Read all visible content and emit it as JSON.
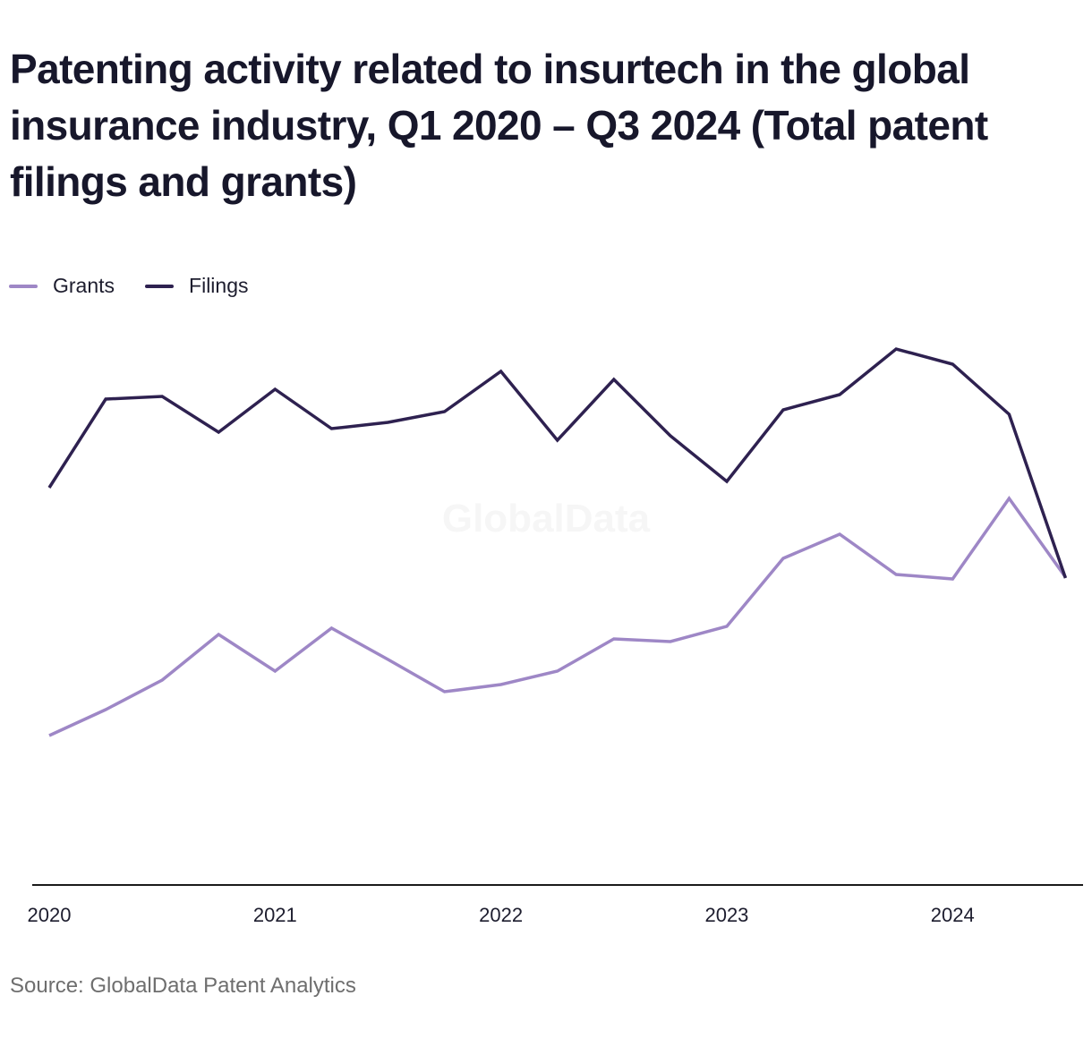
{
  "title": "Patenting activity related to insurtech in the global insurance industry, Q1 2020 – Q3 2024 (Total patent filings and grants)",
  "source": "Source: GlobalData Patent Analytics",
  "watermark": "GlobalData",
  "colors": {
    "grants": "#9e87c6",
    "filings": "#2e2150",
    "axis": "#1a1a1a"
  },
  "legend": [
    {
      "key": "grants",
      "label": "Grants"
    },
    {
      "key": "filings",
      "label": "Filings"
    }
  ],
  "chart_data": {
    "type": "line",
    "title": "Patenting activity related to insurtech in the global insurance industry, Q1 2020 – Q3 2024 (Total patent filings and grants)",
    "xlabel": "",
    "ylabel": "",
    "x": [
      "Q1 2020",
      "Q2 2020",
      "Q3 2020",
      "Q4 2020",
      "Q1 2021",
      "Q2 2021",
      "Q3 2021",
      "Q4 2021",
      "Q1 2022",
      "Q2 2022",
      "Q3 2022",
      "Q4 2022",
      "Q1 2023",
      "Q2 2023",
      "Q3 2023",
      "Q4 2023",
      "Q1 2024",
      "Q2 2024",
      "Q3 2024"
    ],
    "x_tick_labels": [
      "2020",
      "2021",
      "2022",
      "2023",
      "2024"
    ],
    "x_tick_positions": [
      0,
      4,
      8,
      12,
      16
    ],
    "ylim": [
      0,
      600
    ],
    "y_axis_labels_shown": false,
    "grid": false,
    "legend_position": "top-left",
    "series": [
      {
        "name": "Grants",
        "key": "grants",
        "values": [
          167,
          196,
          229,
          280,
          239,
          287,
          252,
          216,
          224,
          239,
          275,
          272,
          289,
          365,
          392,
          347,
          342,
          432,
          344
        ]
      },
      {
        "name": "Filings",
        "key": "filings",
        "values": [
          444,
          543,
          546,
          506,
          554,
          510,
          517,
          529,
          574,
          497,
          565,
          502,
          451,
          531,
          548,
          599,
          582,
          526,
          343
        ]
      }
    ]
  }
}
